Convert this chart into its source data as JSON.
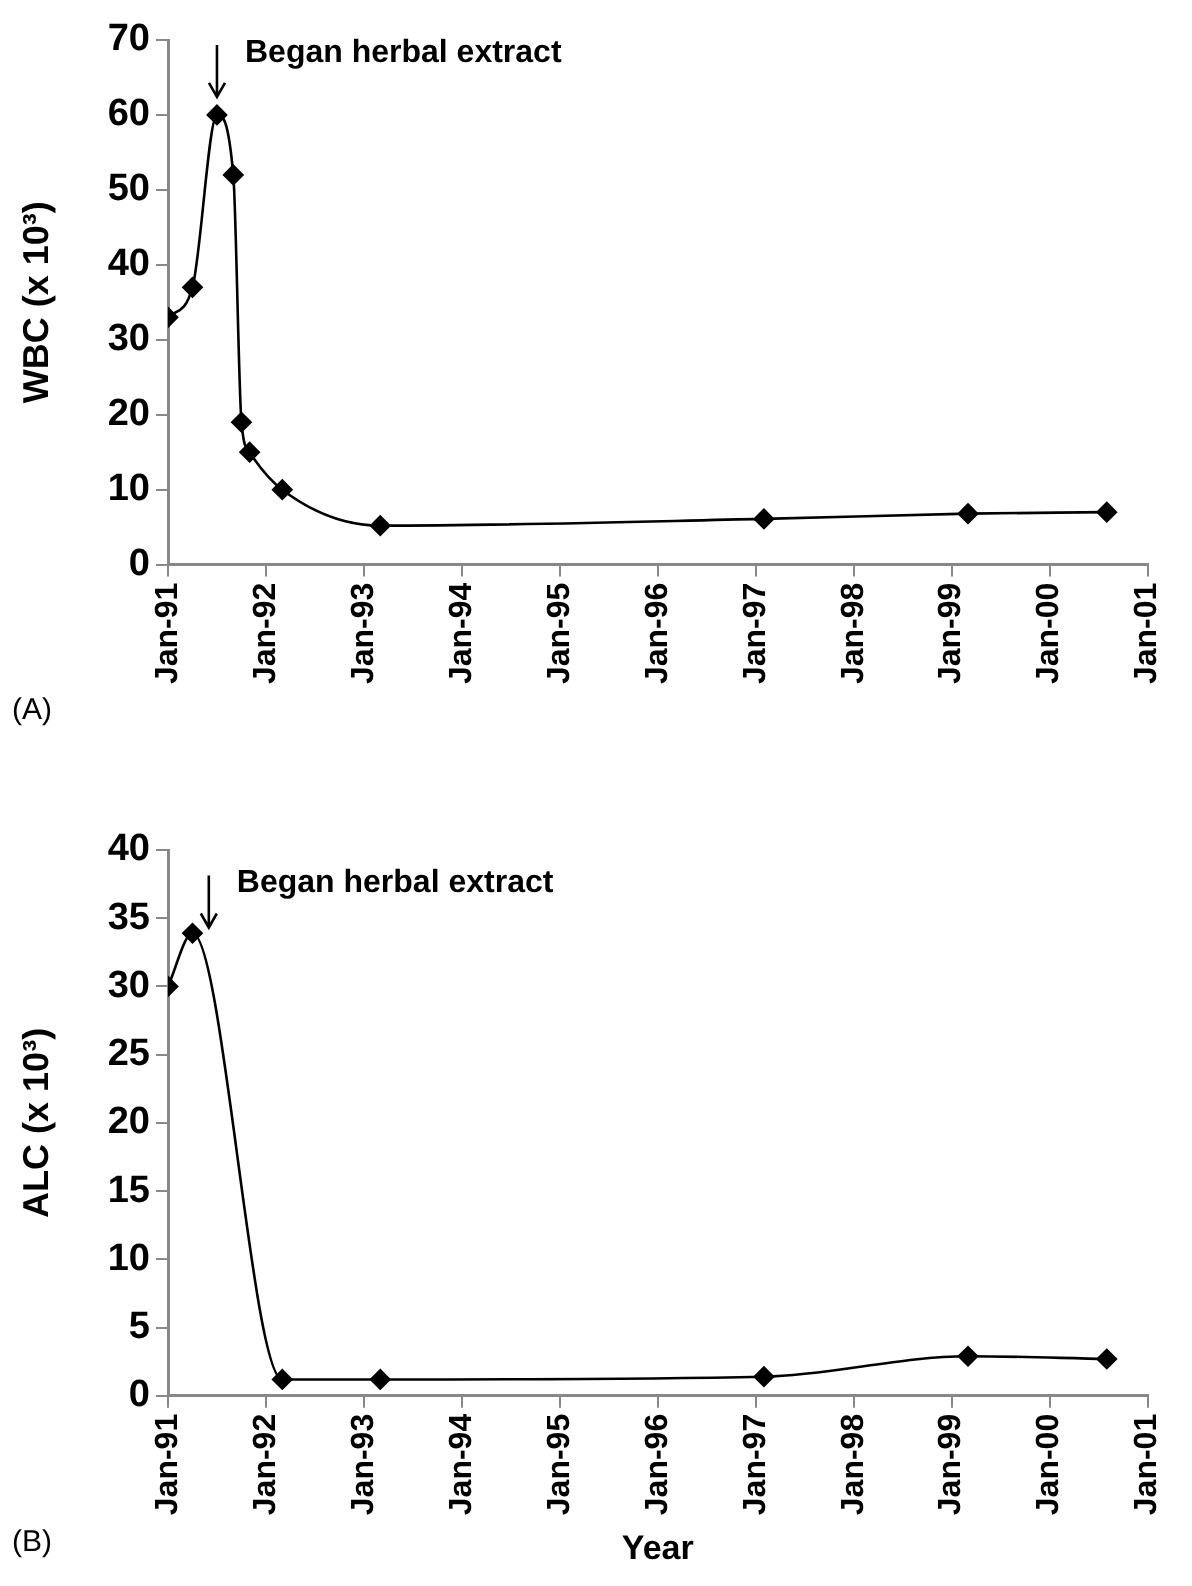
{
  "chart_data": [
    {
      "type": "line",
      "ylabel": "WBC (x 10³)",
      "x": [
        "1991-01",
        "1991-04",
        "1991-07",
        "1991-09",
        "1991-10",
        "1991-11",
        "1992-03",
        "1993-03",
        "1997-02",
        "1999-03",
        "2000-08"
      ],
      "series": [
        {
          "color": "#000000",
          "values": [
            33,
            37,
            60,
            52,
            19,
            15,
            10,
            5.2,
            6.1,
            6.8,
            7.0
          ]
        }
      ],
      "xlim": [
        "1991-01",
        "2001-01"
      ],
      "xticks": [
        {
          "value": "1991-01",
          "label": "Jan-91"
        },
        {
          "value": "1992-01",
          "label": "Jan-92"
        },
        {
          "value": "1993-01",
          "label": "Jan-93"
        },
        {
          "value": "1994-01",
          "label": "Jan-94"
        },
        {
          "value": "1995-01",
          "label": "Jan-95"
        },
        {
          "value": "1996-01",
          "label": "Jan-96"
        },
        {
          "value": "1997-01",
          "label": "Jan-97"
        },
        {
          "value": "1998-01",
          "label": "Jan-98"
        },
        {
          "value": "1999-01",
          "label": "Jan-99"
        },
        {
          "value": "2000-01",
          "label": "Jan-00"
        },
        {
          "value": "2001-01",
          "label": "Jan-01"
        }
      ],
      "ylim": [
        0,
        70
      ],
      "yticks": [
        0,
        10,
        20,
        30,
        40,
        50,
        60,
        70
      ],
      "annotations": [
        {
          "text": "Began herbal extract",
          "x": "1991-07",
          "y": 60
        },
        "(A)"
      ],
      "grid": false,
      "legend": false,
      "marker": "diamond",
      "line_style": "solid"
    },
    {
      "type": "line",
      "ylabel": "ALC (x 10³)",
      "xlabel": "Year",
      "x": [
        "1991-01",
        "1991-04",
        "1992-03",
        "1993-03",
        "1997-02",
        "1999-03",
        "2000-08"
      ],
      "series": [
        {
          "color": "#000000",
          "values": [
            30,
            33.9,
            1.2,
            1.2,
            1.4,
            2.9,
            2.7
          ]
        }
      ],
      "xlim": [
        "1991-01",
        "2001-01"
      ],
      "xticks": [
        {
          "value": "1991-01",
          "label": "Jan-91"
        },
        {
          "value": "1992-01",
          "label": "Jan-92"
        },
        {
          "value": "1993-01",
          "label": "Jan-93"
        },
        {
          "value": "1994-01",
          "label": "Jan-94"
        },
        {
          "value": "1995-01",
          "label": "Jan-95"
        },
        {
          "value": "1996-01",
          "label": "Jan-96"
        },
        {
          "value": "1997-01",
          "label": "Jan-97"
        },
        {
          "value": "1998-01",
          "label": "Jan-98"
        },
        {
          "value": "1999-01",
          "label": "Jan-99"
        },
        {
          "value": "2000-01",
          "label": "Jan-00"
        },
        {
          "value": "2001-01",
          "label": "Jan-01"
        }
      ],
      "ylim": [
        0,
        40
      ],
      "yticks": [
        0,
        5,
        10,
        15,
        20,
        25,
        30,
        35,
        40
      ],
      "annotations": [
        {
          "text": "Began herbal extract",
          "x": "1991-06",
          "y": 33
        },
        "(B)"
      ],
      "grid": false,
      "legend": false,
      "marker": "diamond",
      "line_style": "solid"
    }
  ]
}
